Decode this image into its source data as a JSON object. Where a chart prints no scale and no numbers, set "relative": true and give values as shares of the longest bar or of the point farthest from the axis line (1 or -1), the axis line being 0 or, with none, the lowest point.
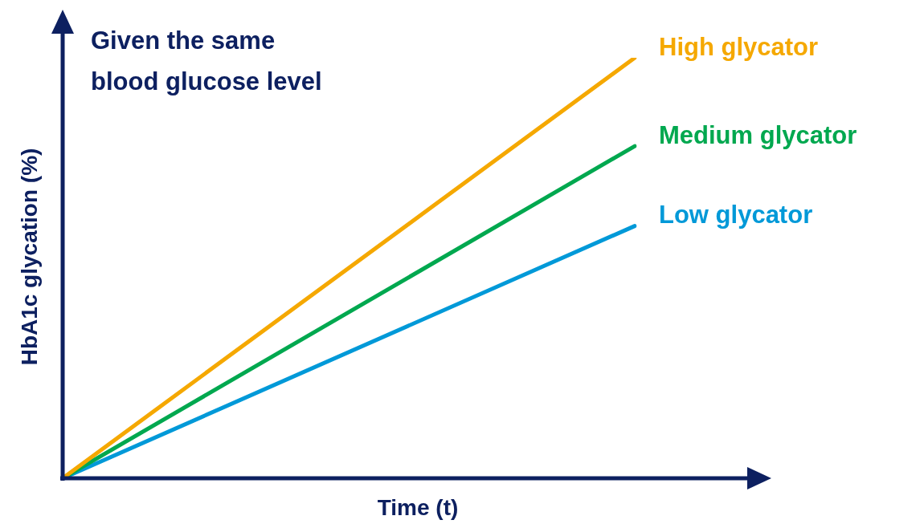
{
  "chart_data": {
    "type": "line",
    "title": "Given the same blood glucose level",
    "xlabel": "Time (t)",
    "ylabel": "HbA1c glycation (%)",
    "relative": true,
    "marker": "none",
    "categories": [
      null,
      null
    ],
    "series": [
      {
        "name": "High glycator",
        "color": "#f5a800",
        "values": [
          0,
          1
        ]
      },
      {
        "name": "Medium glycator",
        "color": "#00a84f",
        "values": [
          0,
          0.79
        ]
      },
      {
        "name": "Low glycator",
        "color": "#0099d8",
        "values": [
          0,
          0.6
        ]
      }
    ]
  }
}
